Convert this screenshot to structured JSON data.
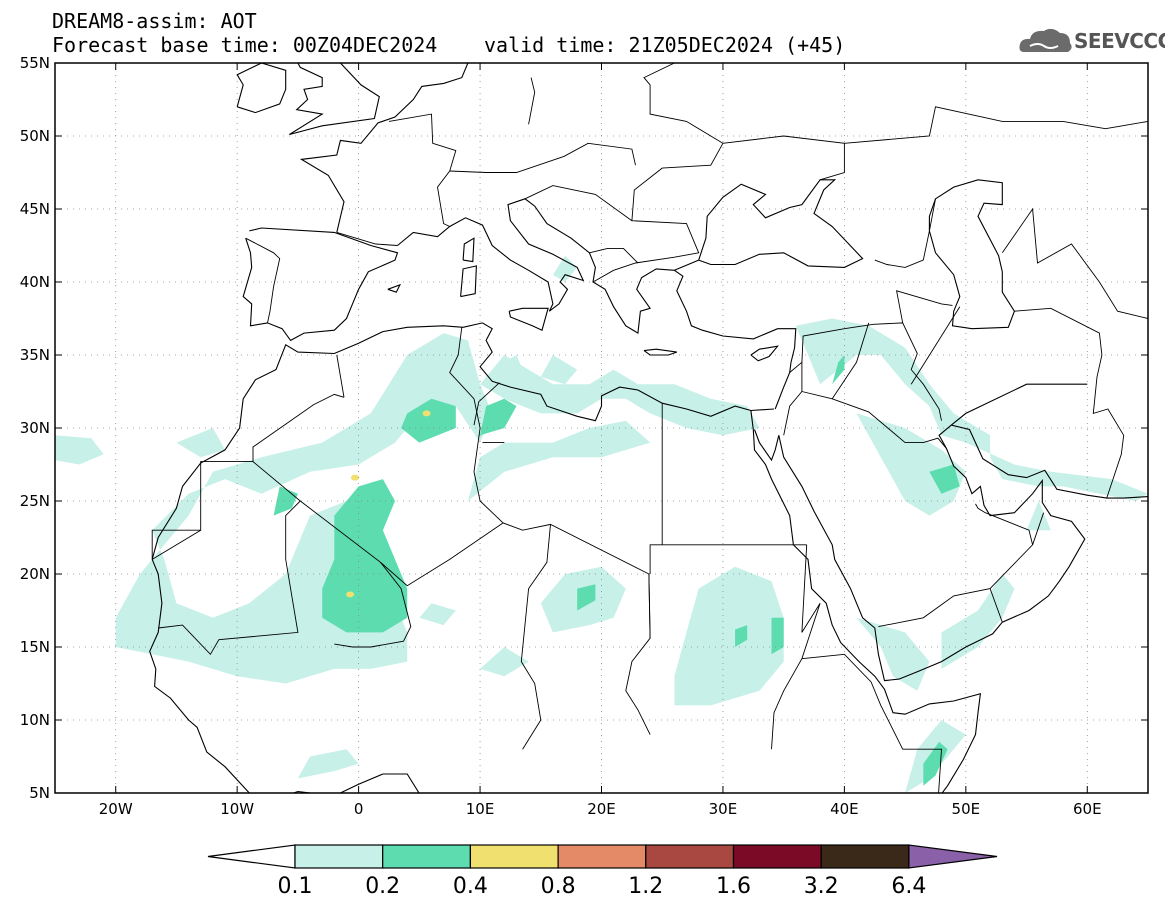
{
  "title": {
    "line1": "DREAM8-assim: AOT",
    "line2": "Forecast base time: 00Z04DEC2024",
    "valid": "valid time: 21Z05DEC2024 (+45)"
  },
  "logo": {
    "text": "SEEVCCC",
    "icon": "cloud-logo-icon"
  },
  "map_data": {
    "variable": "AOT",
    "lon_range": [
      -25,
      65
    ],
    "lat_range": [
      5,
      55
    ],
    "lat_ticks": [
      {
        "value": 55,
        "label": "55N"
      },
      {
        "value": 50,
        "label": "50N"
      },
      {
        "value": 45,
        "label": "45N"
      },
      {
        "value": 40,
        "label": "40N"
      },
      {
        "value": 35,
        "label": "35N"
      },
      {
        "value": 30,
        "label": "30N"
      },
      {
        "value": 25,
        "label": "25N"
      },
      {
        "value": 20,
        "label": "20N"
      },
      {
        "value": 15,
        "label": "15N"
      },
      {
        "value": 10,
        "label": "10N"
      },
      {
        "value": 5,
        "label": "5N"
      }
    ],
    "lon_ticks": [
      {
        "value": -20,
        "label": "20W"
      },
      {
        "value": -10,
        "label": "10W"
      },
      {
        "value": 0,
        "label": "0"
      },
      {
        "value": 10,
        "label": "10E"
      },
      {
        "value": 20,
        "label": "20E"
      },
      {
        "value": 30,
        "label": "30E"
      },
      {
        "value": 40,
        "label": "40E"
      },
      {
        "value": 50,
        "label": "50E"
      },
      {
        "value": 60,
        "label": "60E"
      }
    ],
    "grid": true,
    "colors": {
      "c01": "#c6f0e8",
      "c02": "#5ddcb0",
      "c04": "#f0e070",
      "coast": "#000000"
    }
  },
  "colorbar": {
    "labels": [
      "0.1",
      "0.2",
      "0.4",
      "0.8",
      "1.2",
      "1.6",
      "3.2",
      "6.4"
    ],
    "colors": [
      "#ffffff",
      "#c6f0e8",
      "#5ddcb0",
      "#f0e070",
      "#e58a66",
      "#a84840",
      "#7a0a26",
      "#3a2818",
      "#8a60a8"
    ]
  }
}
